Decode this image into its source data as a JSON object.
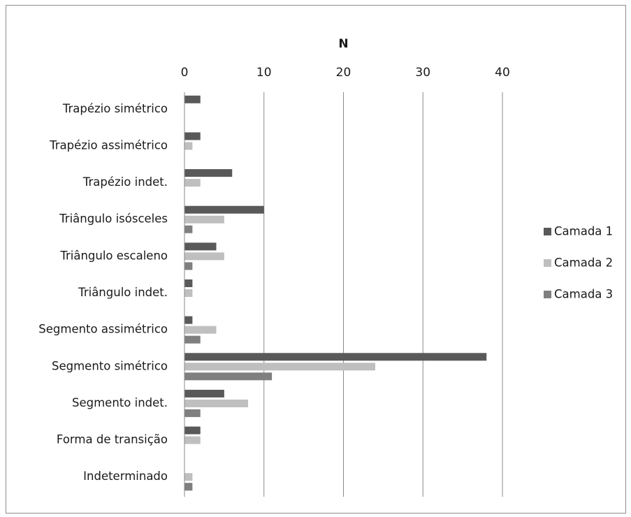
{
  "chart_data": {
    "type": "bar",
    "orientation": "horizontal",
    "title": "",
    "xlabel": "N",
    "ylabel": "",
    "xlim": [
      0,
      40
    ],
    "xticks": [
      "0",
      "10",
      "20",
      "30",
      "40"
    ],
    "x_axis_position": "top",
    "grid": true,
    "legend_position": "right",
    "categories": [
      "Trapézio simétrico",
      "Trapézio assimétrico",
      "Trapézio indet.",
      "Triângulo isósceles",
      "Triângulo escaleno",
      "Triângulo indet.",
      "Segmento assimétrico",
      "Segmento simétrico",
      "Segmento indet.",
      "Forma de transição",
      "Indeterminado"
    ],
    "series": [
      {
        "name": "Camada 1",
        "color": "#595959",
        "values": [
          2,
          2,
          6,
          10,
          4,
          1,
          1,
          38,
          5,
          2,
          0
        ]
      },
      {
        "name": "Camada 2",
        "color": "#bfbfbf",
        "values": [
          0,
          1,
          2,
          5,
          5,
          1,
          4,
          24,
          8,
          2,
          1
        ]
      },
      {
        "name": "Camada 3",
        "color": "#7f7f7f",
        "values": [
          0,
          0,
          0,
          1,
          1,
          0,
          2,
          11,
          2,
          0,
          1
        ]
      }
    ]
  }
}
